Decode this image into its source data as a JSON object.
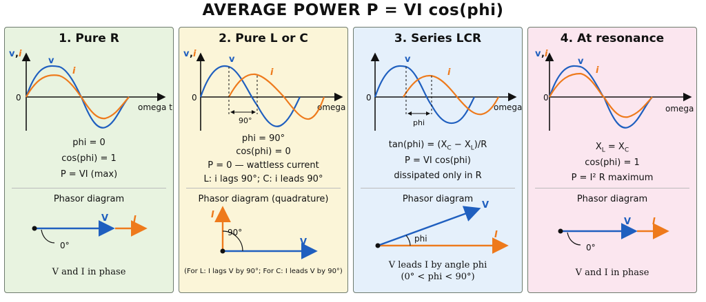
{
  "title": "AVERAGE POWER  P = VI cos(phi)",
  "colors": {
    "v": "#1f5fbf",
    "i": "#ee7a1c",
    "axis": "#111111"
  },
  "common": {
    "axis_v": "v",
    "axis_comma": ",",
    "axis_i": "i",
    "origin": "0",
    "omega": "omega t",
    "label_v": "v",
    "label_i": "i",
    "V": "V",
    "I": "I"
  },
  "panels": [
    {
      "title": "1. Pure R",
      "bg": "#e8f3e0",
      "lines": [
        "phi = 0",
        "cos(phi) = 1",
        "P = VI (max)"
      ],
      "phasor_label": "Phasor diagram",
      "angle": "0°",
      "note": "V and I in phase"
    },
    {
      "title": "2. Pure L or C",
      "bg": "#fbf5d8",
      "shift": "90°",
      "lines": [
        "phi = 90°",
        "cos(phi) = 0",
        "P = 0 — wattless current",
        "L: i lags 90°;  C: i leads 90°"
      ],
      "phasor_label": "Phasor diagram (quadrature)",
      "angle": "90°",
      "note": "(For L: I lags V by 90°;  For C: I leads V by 90°)"
    },
    {
      "title": "3. Series LCR",
      "bg": "#e5f0fb",
      "shift": "phi",
      "lines": [
        "tan(phi) = (XC − XL)/R",
        "P = VI cos(phi)",
        "dissipated only in R"
      ],
      "phasor_label": "Phasor diagram",
      "angle": "phi",
      "note": "V leads I by angle phi",
      "note2": "(0° < phi < 90°)"
    },
    {
      "title": "4. At resonance",
      "bg": "#fbe6ef",
      "lines": [
        "XL = XC",
        "cos(phi) = 1",
        "P = I² R maximum"
      ],
      "phasor_label": "Phasor diagram",
      "angle": "0°",
      "note": "V and I in phase"
    }
  ]
}
